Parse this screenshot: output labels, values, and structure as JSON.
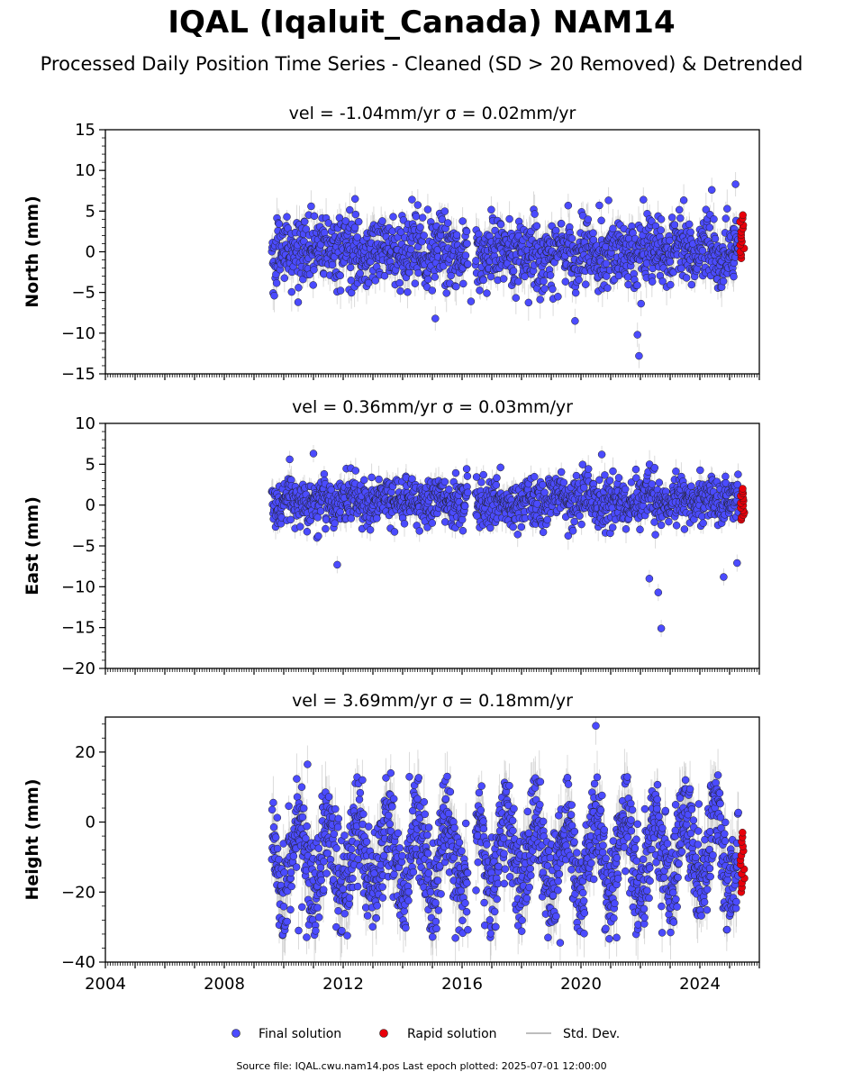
{
  "figure": {
    "title": "IQAL (Iqaluit_Canada) NAM14",
    "subtitle": "Processed Daily Position Time Series - Cleaned (SD > 20 Removed) & Detrended",
    "source_note": "Source file: IQAL.cwu.nam14.pos  Last epoch plotted: 2025-07-01 12:00:00"
  },
  "legend": {
    "final": "Final solution",
    "rapid": "Rapid solution",
    "std": "Std. Dev."
  },
  "colors": {
    "final": "#4b4bff",
    "rapid": "#e8000b",
    "std": "#bdbdbd",
    "edge": "#202020"
  },
  "chart_data": [
    {
      "type": "scatter",
      "component": "north",
      "title": "vel = -1.04mm/yr   σ = 0.02mm/yr",
      "ylabel": "North (mm)",
      "xlim": [
        2004.0,
        2026.0
      ],
      "ylim": [
        -15,
        15
      ],
      "yticks": [
        -15,
        -10,
        -5,
        0,
        5,
        10,
        15
      ],
      "xticks": [
        2004,
        2008,
        2012,
        2016,
        2020,
        2024
      ],
      "final_series": {
        "start": 2009.6,
        "end": 2025.3,
        "gap": [
          2016.2,
          2016.45
        ],
        "typical_range": [
          -5,
          5
        ],
        "extremes": [
          {
            "x": 2012.4,
            "y": 6.5
          },
          {
            "x": 2015.1,
            "y": -8.2
          },
          {
            "x": 2016.3,
            "y": -6.1
          },
          {
            "x": 2019.8,
            "y": -8.5
          },
          {
            "x": 2021.9,
            "y": -10.2
          },
          {
            "x": 2021.95,
            "y": -12.8
          },
          {
            "x": 2022.1,
            "y": 6.4
          },
          {
            "x": 2024.4,
            "y": 7.6
          },
          {
            "x": 2025.2,
            "y": 8.3
          }
        ]
      },
      "rapid_series": {
        "start": 2025.35,
        "end": 2025.5,
        "range": [
          -0.8,
          4.5
        ]
      }
    },
    {
      "type": "scatter",
      "component": "east",
      "title": "vel = 0.36mm/yr   σ = 0.03mm/yr",
      "ylabel": "East (mm)",
      "xlim": [
        2004.0,
        2026.0
      ],
      "ylim": [
        -20,
        10
      ],
      "yticks": [
        -20,
        -15,
        -10,
        -5,
        0,
        5,
        10
      ],
      "xticks": [
        2004,
        2008,
        2012,
        2016,
        2020,
        2024
      ],
      "final_series": {
        "start": 2009.6,
        "end": 2025.3,
        "gap": [
          2016.2,
          2016.45
        ],
        "typical_range": [
          -3,
          4
        ],
        "extremes": [
          {
            "x": 2010.2,
            "y": 5.6
          },
          {
            "x": 2011.0,
            "y": 6.3
          },
          {
            "x": 2011.8,
            "y": -7.3
          },
          {
            "x": 2020.7,
            "y": 6.2
          },
          {
            "x": 2022.6,
            "y": -10.7
          },
          {
            "x": 2022.7,
            "y": -15.1
          },
          {
            "x": 2022.3,
            "y": -9.0
          },
          {
            "x": 2024.8,
            "y": -8.8
          },
          {
            "x": 2025.25,
            "y": -7.1
          }
        ]
      },
      "rapid_series": {
        "start": 2025.35,
        "end": 2025.5,
        "range": [
          -1.8,
          2.0
        ]
      }
    },
    {
      "type": "scatter",
      "component": "height",
      "title": "vel = 3.69mm/yr   σ = 0.18mm/yr",
      "ylabel": "Height (mm)",
      "xlim": [
        2004.0,
        2026.0
      ],
      "ylim": [
        -40,
        30
      ],
      "yticks": [
        -40,
        -20,
        0,
        20
      ],
      "xticks": [
        2004,
        2008,
        2012,
        2016,
        2020,
        2024
      ],
      "final_series": {
        "start": 2009.6,
        "end": 2025.3,
        "gap": [
          2016.2,
          2016.45
        ],
        "typical_range": [
          -28,
          8
        ],
        "extremes": [
          {
            "x": 2010.8,
            "y": 16.5
          },
          {
            "x": 2013.6,
            "y": 14.0
          },
          {
            "x": 2020.5,
            "y": 27.5
          },
          {
            "x": 2019.3,
            "y": -34.5
          },
          {
            "x": 2010.5,
            "y": -31.0
          },
          {
            "x": 2021.2,
            "y": -33.0
          }
        ]
      },
      "rapid_series": {
        "start": 2025.35,
        "end": 2025.5,
        "range": [
          -20,
          -3
        ]
      }
    }
  ]
}
